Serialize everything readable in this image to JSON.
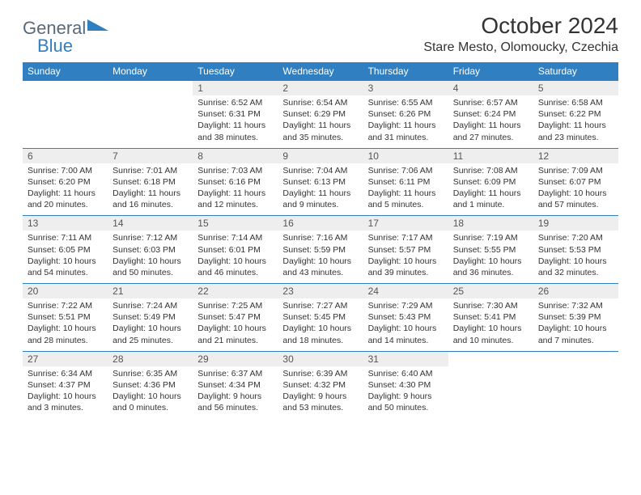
{
  "brand": {
    "text_general": "General",
    "text_blue": "Blue",
    "shape_color": "#2f7fc1",
    "text_color_general": "#5a6a78",
    "text_color_blue": "#2f7fc1"
  },
  "title": "October 2024",
  "location": "Stare Mesto, Olomoucky, Czechia",
  "colors": {
    "header_bg": "#2f7fc1",
    "header_text": "#ffffff",
    "daynum_bg": "#eeeeee",
    "row_border": "#2f7fc1",
    "body_text": "#333333",
    "page_bg": "#ffffff"
  },
  "typography": {
    "title_fontsize": 28,
    "location_fontsize": 16,
    "dayheader_fontsize": 12,
    "daynum_fontsize": 12,
    "body_fontsize": 10.5,
    "font_family": "Arial"
  },
  "day_headers": [
    "Sunday",
    "Monday",
    "Tuesday",
    "Wednesday",
    "Thursday",
    "Friday",
    "Saturday"
  ],
  "weeks": [
    [
      null,
      null,
      {
        "n": "1",
        "sunrise": "6:52 AM",
        "sunset": "6:31 PM",
        "daylight": "11 hours and 38 minutes."
      },
      {
        "n": "2",
        "sunrise": "6:54 AM",
        "sunset": "6:29 PM",
        "daylight": "11 hours and 35 minutes."
      },
      {
        "n": "3",
        "sunrise": "6:55 AM",
        "sunset": "6:26 PM",
        "daylight": "11 hours and 31 minutes."
      },
      {
        "n": "4",
        "sunrise": "6:57 AM",
        "sunset": "6:24 PM",
        "daylight": "11 hours and 27 minutes."
      },
      {
        "n": "5",
        "sunrise": "6:58 AM",
        "sunset": "6:22 PM",
        "daylight": "11 hours and 23 minutes."
      }
    ],
    [
      {
        "n": "6",
        "sunrise": "7:00 AM",
        "sunset": "6:20 PM",
        "daylight": "11 hours and 20 minutes."
      },
      {
        "n": "7",
        "sunrise": "7:01 AM",
        "sunset": "6:18 PM",
        "daylight": "11 hours and 16 minutes."
      },
      {
        "n": "8",
        "sunrise": "7:03 AM",
        "sunset": "6:16 PM",
        "daylight": "11 hours and 12 minutes."
      },
      {
        "n": "9",
        "sunrise": "7:04 AM",
        "sunset": "6:13 PM",
        "daylight": "11 hours and 9 minutes."
      },
      {
        "n": "10",
        "sunrise": "7:06 AM",
        "sunset": "6:11 PM",
        "daylight": "11 hours and 5 minutes."
      },
      {
        "n": "11",
        "sunrise": "7:08 AM",
        "sunset": "6:09 PM",
        "daylight": "11 hours and 1 minute."
      },
      {
        "n": "12",
        "sunrise": "7:09 AM",
        "sunset": "6:07 PM",
        "daylight": "10 hours and 57 minutes."
      }
    ],
    [
      {
        "n": "13",
        "sunrise": "7:11 AM",
        "sunset": "6:05 PM",
        "daylight": "10 hours and 54 minutes."
      },
      {
        "n": "14",
        "sunrise": "7:12 AM",
        "sunset": "6:03 PM",
        "daylight": "10 hours and 50 minutes."
      },
      {
        "n": "15",
        "sunrise": "7:14 AM",
        "sunset": "6:01 PM",
        "daylight": "10 hours and 46 minutes."
      },
      {
        "n": "16",
        "sunrise": "7:16 AM",
        "sunset": "5:59 PM",
        "daylight": "10 hours and 43 minutes."
      },
      {
        "n": "17",
        "sunrise": "7:17 AM",
        "sunset": "5:57 PM",
        "daylight": "10 hours and 39 minutes."
      },
      {
        "n": "18",
        "sunrise": "7:19 AM",
        "sunset": "5:55 PM",
        "daylight": "10 hours and 36 minutes."
      },
      {
        "n": "19",
        "sunrise": "7:20 AM",
        "sunset": "5:53 PM",
        "daylight": "10 hours and 32 minutes."
      }
    ],
    [
      {
        "n": "20",
        "sunrise": "7:22 AM",
        "sunset": "5:51 PM",
        "daylight": "10 hours and 28 minutes."
      },
      {
        "n": "21",
        "sunrise": "7:24 AM",
        "sunset": "5:49 PM",
        "daylight": "10 hours and 25 minutes."
      },
      {
        "n": "22",
        "sunrise": "7:25 AM",
        "sunset": "5:47 PM",
        "daylight": "10 hours and 21 minutes."
      },
      {
        "n": "23",
        "sunrise": "7:27 AM",
        "sunset": "5:45 PM",
        "daylight": "10 hours and 18 minutes."
      },
      {
        "n": "24",
        "sunrise": "7:29 AM",
        "sunset": "5:43 PM",
        "daylight": "10 hours and 14 minutes."
      },
      {
        "n": "25",
        "sunrise": "7:30 AM",
        "sunset": "5:41 PM",
        "daylight": "10 hours and 10 minutes."
      },
      {
        "n": "26",
        "sunrise": "7:32 AM",
        "sunset": "5:39 PM",
        "daylight": "10 hours and 7 minutes."
      }
    ],
    [
      {
        "n": "27",
        "sunrise": "6:34 AM",
        "sunset": "4:37 PM",
        "daylight": "10 hours and 3 minutes."
      },
      {
        "n": "28",
        "sunrise": "6:35 AM",
        "sunset": "4:36 PM",
        "daylight": "10 hours and 0 minutes."
      },
      {
        "n": "29",
        "sunrise": "6:37 AM",
        "sunset": "4:34 PM",
        "daylight": "9 hours and 56 minutes."
      },
      {
        "n": "30",
        "sunrise": "6:39 AM",
        "sunset": "4:32 PM",
        "daylight": "9 hours and 53 minutes."
      },
      {
        "n": "31",
        "sunrise": "6:40 AM",
        "sunset": "4:30 PM",
        "daylight": "9 hours and 50 minutes."
      },
      null,
      null
    ]
  ],
  "labels": {
    "sunrise_prefix": "Sunrise: ",
    "sunset_prefix": "Sunset: ",
    "daylight_prefix": "Daylight: "
  }
}
